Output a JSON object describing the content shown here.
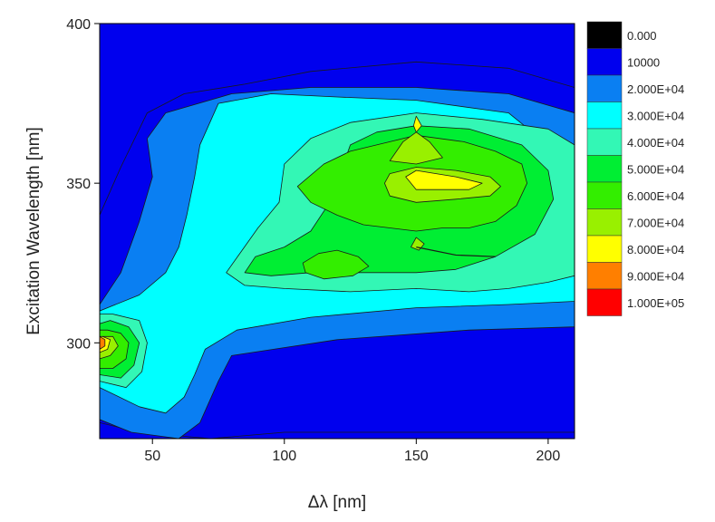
{
  "chart_data": {
    "type": "heatmap",
    "subtype": "filled contour",
    "title": "",
    "xlabel": "Δλ [nm]",
    "ylabel": "Excitation Wavelength [nm]",
    "xlim": [
      30,
      210
    ],
    "ylim": [
      270,
      400
    ],
    "xticks": [
      50,
      100,
      150,
      200
    ],
    "xtick_labels": [
      "50",
      "100",
      "150",
      "200"
    ],
    "yticks": [
      300,
      350,
      400
    ],
    "ytick_labels": [
      "300",
      "350",
      "400"
    ],
    "grid": false,
    "legend_position": "right",
    "legend": [
      {
        "label": "0.000",
        "color": "#000000"
      },
      {
        "label": "10000",
        "color": "#0000EE"
      },
      {
        "label": "2.000E+04",
        "color": "#0A7FF2"
      },
      {
        "label": "3.000E+04",
        "color": "#00FFFF"
      },
      {
        "label": "4.000E+04",
        "color": "#33F7B5"
      },
      {
        "label": "5.000E+04",
        "color": "#00EE33"
      },
      {
        "label": "6.000E+04",
        "color": "#33EE00"
      },
      {
        "label": "7.000E+04",
        "color": "#99F000"
      },
      {
        "label": "8.000E+04",
        "color": "#FFFF00"
      },
      {
        "label": "9.000E+04",
        "color": "#FF7F00"
      },
      {
        "label": "1.000E+05",
        "color": "#FF0000"
      }
    ],
    "regions": [
      {
        "level": 10000,
        "points": [
          [
            30,
            284
          ],
          [
            30,
            340
          ],
          [
            38,
            355
          ],
          [
            48,
            372
          ],
          [
            62,
            378
          ],
          [
            85,
            381
          ],
          [
            110,
            385
          ],
          [
            150,
            388
          ],
          [
            185,
            386
          ],
          [
            210,
            380
          ],
          [
            210,
            272
          ],
          [
            100,
            272
          ],
          [
            72,
            270
          ],
          [
            45,
            272
          ],
          [
            30,
            275
          ]
        ]
      },
      {
        "level": 20000,
        "points": [
          [
            30,
            276
          ],
          [
            42,
            272
          ],
          [
            60,
            270
          ],
          [
            68,
            275
          ],
          [
            75,
            288
          ],
          [
            80,
            296
          ],
          [
            120,
            301
          ],
          [
            170,
            304
          ],
          [
            210,
            305
          ],
          [
            210,
            372
          ],
          [
            185,
            378
          ],
          [
            150,
            380
          ],
          [
            110,
            380
          ],
          [
            80,
            378
          ],
          [
            55,
            372
          ],
          [
            48,
            364
          ],
          [
            50,
            352
          ],
          [
            45,
            338
          ],
          [
            38,
            322
          ],
          [
            30,
            312
          ]
        ]
      },
      {
        "level": 30000,
        "points": [
          [
            30,
            286
          ],
          [
            45,
            280
          ],
          [
            55,
            278
          ],
          [
            62,
            283
          ],
          [
            66,
            290
          ],
          [
            70,
            298
          ],
          [
            82,
            304
          ],
          [
            110,
            308
          ],
          [
            150,
            311
          ],
          [
            185,
            312
          ],
          [
            210,
            313
          ],
          [
            210,
            360
          ],
          [
            200,
            362
          ],
          [
            185,
            372
          ],
          [
            150,
            376
          ],
          [
            120,
            377
          ],
          [
            95,
            378
          ],
          [
            75,
            375
          ],
          [
            68,
            362
          ],
          [
            66,
            352
          ],
          [
            63,
            340
          ],
          [
            60,
            330
          ],
          [
            55,
            322
          ],
          [
            45,
            315
          ],
          [
            30,
            310
          ]
        ]
      },
      {
        "level": 40000,
        "points": [
          [
            30,
            288
          ],
          [
            40,
            286
          ],
          [
            46,
            291
          ],
          [
            48,
            300
          ],
          [
            45,
            307
          ],
          [
            35,
            309
          ],
          [
            30,
            309
          ]
        ]
      },
      {
        "level": 40000,
        "points": [
          [
            78,
            322
          ],
          [
            84,
            329
          ],
          [
            90,
            336
          ],
          [
            98,
            344
          ],
          [
            100,
            356
          ],
          [
            110,
            364
          ],
          [
            125,
            369
          ],
          [
            150,
            372
          ],
          [
            175,
            370
          ],
          [
            200,
            367
          ],
          [
            210,
            362
          ],
          [
            210,
            321
          ],
          [
            200,
            319
          ],
          [
            185,
            317
          ],
          [
            170,
            316
          ],
          [
            150,
            317
          ],
          [
            125,
            316
          ],
          [
            100,
            317
          ],
          [
            85,
            318
          ]
        ]
      },
      {
        "level": 50000,
        "points": [
          [
            30,
            290
          ],
          [
            38,
            289
          ],
          [
            43,
            293
          ],
          [
            45,
            300
          ],
          [
            41,
            305
          ],
          [
            34,
            307
          ],
          [
            30,
            306
          ]
        ]
      },
      {
        "level": 50000,
        "points": [
          [
            85,
            322
          ],
          [
            89,
            327
          ],
          [
            100,
            330
          ],
          [
            110,
            335
          ],
          [
            118,
            345
          ],
          [
            122,
            355
          ],
          [
            125,
            362
          ],
          [
            135,
            366
          ],
          [
            150,
            368
          ],
          [
            170,
            367
          ],
          [
            190,
            362
          ],
          [
            200,
            354
          ],
          [
            202,
            345
          ],
          [
            195,
            334
          ],
          [
            180,
            327
          ],
          [
            165,
            323
          ],
          [
            150,
            322
          ],
          [
            130,
            322
          ],
          [
            110,
            322
          ],
          [
            95,
            321
          ]
        ]
      },
      {
        "level": 60000,
        "points": [
          [
            30,
            292
          ],
          [
            35,
            292
          ],
          [
            40,
            295
          ],
          [
            41,
            300
          ],
          [
            38,
            303
          ],
          [
            33,
            304
          ],
          [
            30,
            304
          ]
        ]
      },
      {
        "level": 60000,
        "points": [
          [
            105,
            349
          ],
          [
            115,
            356
          ],
          [
            125,
            360
          ],
          [
            140,
            363
          ],
          [
            150,
            365
          ],
          [
            168,
            363
          ],
          [
            180,
            360
          ],
          [
            190,
            356
          ],
          [
            192,
            350
          ],
          [
            188,
            343
          ],
          [
            180,
            338
          ],
          [
            170,
            336
          ],
          [
            160,
            336
          ],
          [
            150,
            335
          ],
          [
            140,
            336
          ],
          [
            130,
            337
          ],
          [
            120,
            340
          ],
          [
            110,
            344
          ]
        ]
      },
      {
        "level": 60000,
        "points": [
          [
            107,
            325
          ],
          [
            113,
            328
          ],
          [
            120,
            329
          ],
          [
            128,
            327
          ],
          [
            132,
            324
          ],
          [
            126,
            321
          ],
          [
            115,
            320
          ],
          [
            108,
            322
          ]
        ]
      },
      {
        "level": 70000,
        "points": [
          [
            30,
            295
          ],
          [
            34,
            296
          ],
          [
            37,
            299
          ],
          [
            35,
            302
          ],
          [
            31,
            302
          ],
          [
            30,
            301
          ]
        ]
      },
      {
        "level": 70000,
        "points": [
          [
            140,
            357
          ],
          [
            145,
            363
          ],
          [
            150,
            366
          ],
          [
            155,
            363
          ],
          [
            160,
            358
          ],
          [
            150,
            356
          ]
        ]
      },
      {
        "level": 70000,
        "points": [
          [
            138,
            350
          ],
          [
            140,
            353
          ],
          [
            150,
            355
          ],
          [
            165,
            354
          ],
          [
            178,
            352
          ],
          [
            182,
            349
          ],
          [
            178,
            346
          ],
          [
            165,
            345
          ],
          [
            150,
            344
          ],
          [
            140,
            346
          ]
        ]
      },
      {
        "level": 70000,
        "points": [
          [
            148,
            330
          ],
          [
            150,
            333
          ],
          [
            153,
            331
          ],
          [
            151,
            329
          ]
        ]
      },
      {
        "level": 80000,
        "points": [
          [
            149,
            368
          ],
          [
            150,
            371
          ],
          [
            152,
            368
          ],
          [
            150,
            366
          ]
        ]
      },
      {
        "level": 80000,
        "points": [
          [
            146,
            352
          ],
          [
            150,
            354
          ],
          [
            165,
            352
          ],
          [
            175,
            350
          ],
          [
            170,
            348
          ],
          [
            158,
            348
          ],
          [
            150,
            348
          ]
        ]
      },
      {
        "level": 80000,
        "points": [
          [
            30,
            297
          ],
          [
            33,
            298
          ],
          [
            34,
            301
          ],
          [
            31,
            302
          ],
          [
            30,
            302
          ]
        ]
      },
      {
        "level": 90000,
        "points": [
          [
            30,
            298
          ],
          [
            32,
            299
          ],
          [
            32,
            301
          ],
          [
            30,
            302
          ]
        ]
      }
    ]
  }
}
